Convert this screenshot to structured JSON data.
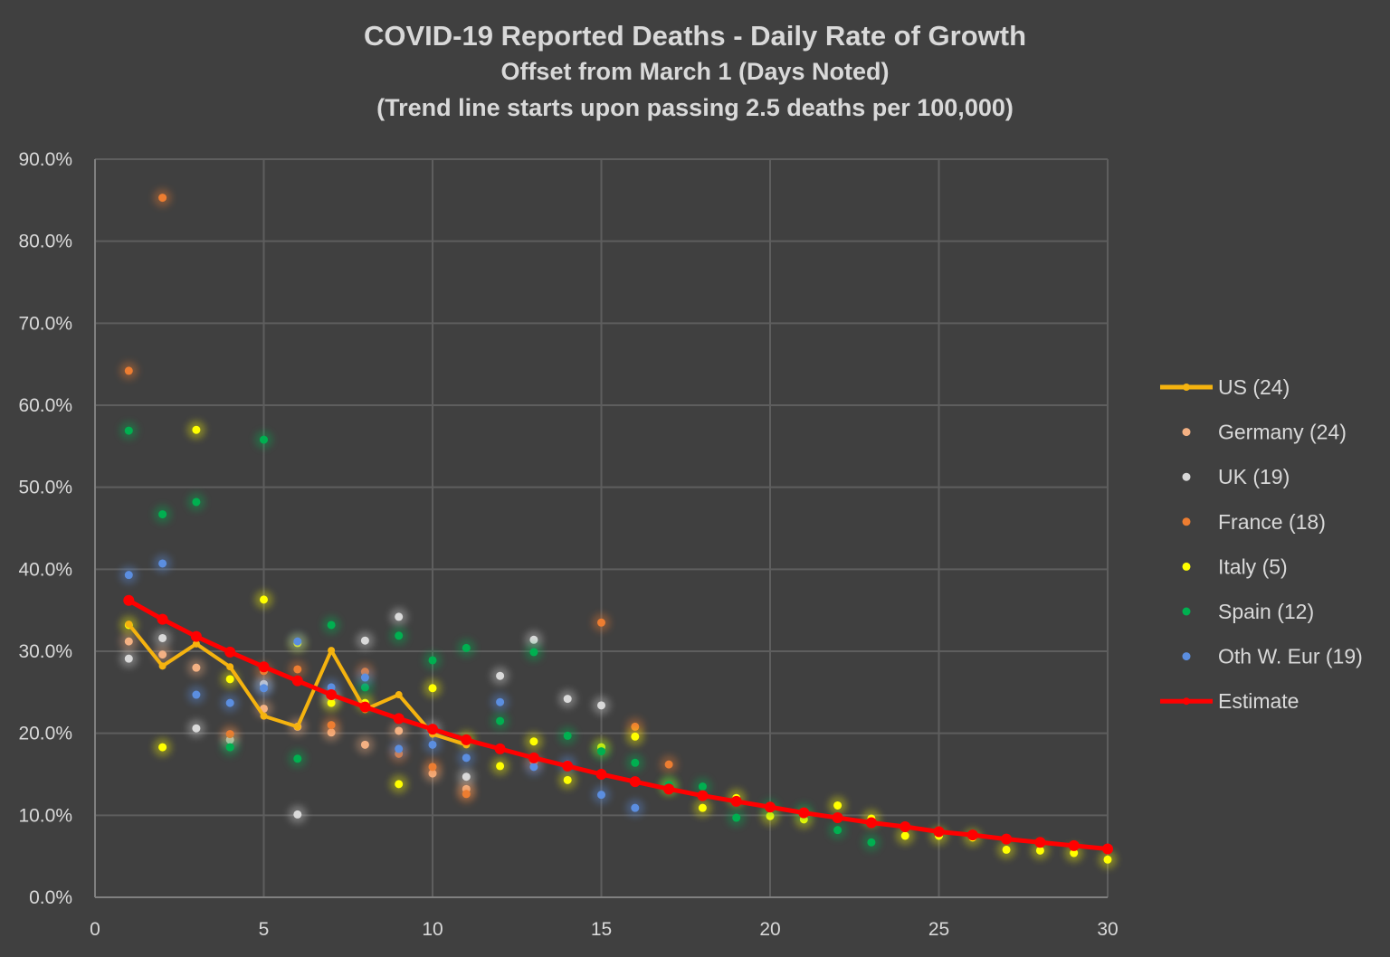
{
  "chart_data": {
    "type": "scatter",
    "title": "COVID-19 Reported Deaths - Daily Rate of Growth",
    "subtitle": "Offset from March 1 (Days Noted)",
    "subtitle2": "(Trend line starts upon passing 2.5 deaths per 100,000)",
    "xlabel": "",
    "ylabel": "",
    "xlim": [
      0,
      30
    ],
    "ylim": [
      0,
      90
    ],
    "x_ticks": [
      "0",
      "5",
      "10",
      "15",
      "20",
      "25",
      "30"
    ],
    "y_ticks": [
      "0.0%",
      "10.0%",
      "20.0%",
      "30.0%",
      "40.0%",
      "50.0%",
      "60.0%",
      "70.0%",
      "80.0%",
      "90.0%"
    ],
    "grid": true,
    "legend_position": "right",
    "series": [
      {
        "name": "US (24)",
        "kind": "line",
        "color": "#f5b30f",
        "x": [
          1,
          2,
          3,
          4,
          5,
          6,
          7,
          8,
          9,
          10,
          11
        ],
        "y": [
          33.3,
          28.2,
          30.9,
          28.1,
          22.1,
          20.8,
          30.1,
          22.9,
          24.7,
          19.9,
          18.6
        ]
      },
      {
        "name": "Germany (24)",
        "kind": "point",
        "color": "#f4b183",
        "x": [
          1,
          2,
          3,
          5,
          6,
          7,
          8,
          9,
          10,
          11
        ],
        "y": [
          31.2,
          29.6,
          28.0,
          23.0,
          20.8,
          20.1,
          18.6,
          20.3,
          15.1,
          13.2
        ]
      },
      {
        "name": "UK (19)",
        "kind": "point",
        "color": "#d9d9d9",
        "x": [
          1,
          2,
          3,
          4,
          5,
          6,
          7,
          8,
          9,
          10,
          11,
          12,
          13,
          14,
          15
        ],
        "y": [
          29.1,
          31.6,
          20.6,
          19.2,
          26.0,
          10.1,
          24.4,
          31.3,
          34.2,
          20.5,
          14.7,
          27.0,
          31.4,
          24.2,
          23.4
        ]
      },
      {
        "name": "France (18)",
        "kind": "point",
        "color": "#ed7d31",
        "x": [
          1,
          2,
          4,
          5,
          6,
          7,
          8,
          9,
          10,
          11,
          13,
          15,
          16,
          17
        ],
        "y": [
          64.2,
          85.3,
          19.9,
          27.6,
          27.8,
          21.0,
          27.5,
          17.5,
          15.9,
          12.6,
          16.5,
          33.5,
          20.8,
          16.2
        ]
      },
      {
        "name": "Italy (5)",
        "kind": "point",
        "color": "#ffff00",
        "x": [
          1,
          2,
          3,
          4,
          5,
          6,
          7,
          8,
          9,
          10,
          11,
          12,
          13,
          14,
          15,
          16,
          17,
          18,
          19,
          20,
          21,
          22,
          23,
          24,
          25,
          26,
          27,
          28,
          29,
          30
        ],
        "y": [
          33.2,
          18.3,
          57.0,
          26.6,
          36.3,
          31.0,
          23.7,
          23.7,
          13.8,
          25.5,
          19.2,
          16.0,
          19.0,
          14.3,
          18.3,
          19.6,
          13.5,
          10.9,
          12.1,
          9.9,
          9.5,
          11.2,
          9.6,
          7.5,
          7.5,
          7.3,
          5.8,
          5.7,
          5.4,
          4.6
        ]
      },
      {
        "name": "Spain (12)",
        "kind": "point",
        "color": "#00b050",
        "x": [
          1,
          2,
          3,
          4,
          5,
          6,
          7,
          8,
          9,
          10,
          11,
          12,
          13,
          14,
          15,
          16,
          17,
          18,
          19,
          20,
          21,
          22,
          23
        ],
        "y": [
          56.9,
          46.7,
          48.2,
          18.3,
          55.8,
          16.9,
          33.2,
          25.6,
          31.9,
          28.9,
          30.4,
          21.5,
          29.9,
          19.7,
          17.8,
          16.4,
          13.7,
          13.5,
          9.7,
          10.9,
          10.4,
          8.2,
          6.7
        ]
      },
      {
        "name": "Oth W. Eur (19)",
        "kind": "point",
        "color": "#5b8ee0",
        "x": [
          1,
          2,
          3,
          4,
          5,
          6,
          7,
          8,
          9,
          10,
          11,
          12,
          13,
          14,
          15,
          16
        ],
        "y": [
          39.3,
          40.7,
          24.7,
          23.7,
          25.5,
          31.2,
          25.6,
          26.8,
          18.1,
          18.6,
          17.0,
          23.8,
          15.9,
          16.2,
          12.5,
          10.9
        ]
      },
      {
        "name": "Estimate",
        "kind": "line",
        "color": "#ff0000",
        "x": [
          1,
          2,
          3,
          4,
          5,
          6,
          7,
          8,
          9,
          10,
          11,
          12,
          13,
          14,
          15,
          16,
          17,
          18,
          19,
          20,
          21,
          22,
          23,
          24,
          25,
          26,
          27,
          28,
          29,
          30
        ],
        "y": [
          36.2,
          33.9,
          31.8,
          29.9,
          28.1,
          26.4,
          24.7,
          23.2,
          21.8,
          20.5,
          19.2,
          18.1,
          17.0,
          16.0,
          15.0,
          14.1,
          13.2,
          12.4,
          11.7,
          11.0,
          10.3,
          9.7,
          9.1,
          8.6,
          8.0,
          7.6,
          7.1,
          6.7,
          6.3,
          5.9
        ]
      }
    ]
  }
}
